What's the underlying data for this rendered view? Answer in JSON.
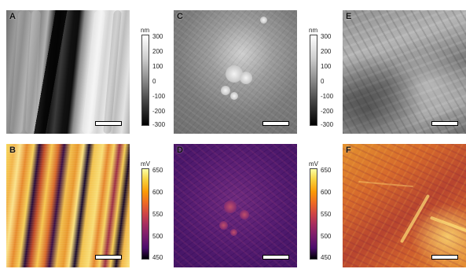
{
  "panels": {
    "a": {
      "label": "A"
    },
    "b": {
      "label": "B"
    },
    "c": {
      "label": "C"
    },
    "d": {
      "label": "D"
    },
    "e": {
      "label": "E"
    },
    "f": {
      "label": "F"
    }
  },
  "colorbars": {
    "height": {
      "unit": "nm",
      "ticks": [
        "300",
        "200",
        "100",
        "0",
        "-100",
        "-200",
        "-300"
      ],
      "colormap": "greyscale"
    },
    "potential": {
      "unit": "mV",
      "ticks": [
        "650",
        "600",
        "550",
        "500",
        "450"
      ],
      "colormap": "inferno"
    }
  },
  "colors": {
    "scalebar_fill": "#ffffff",
    "scalebar_border": "#000000"
  }
}
